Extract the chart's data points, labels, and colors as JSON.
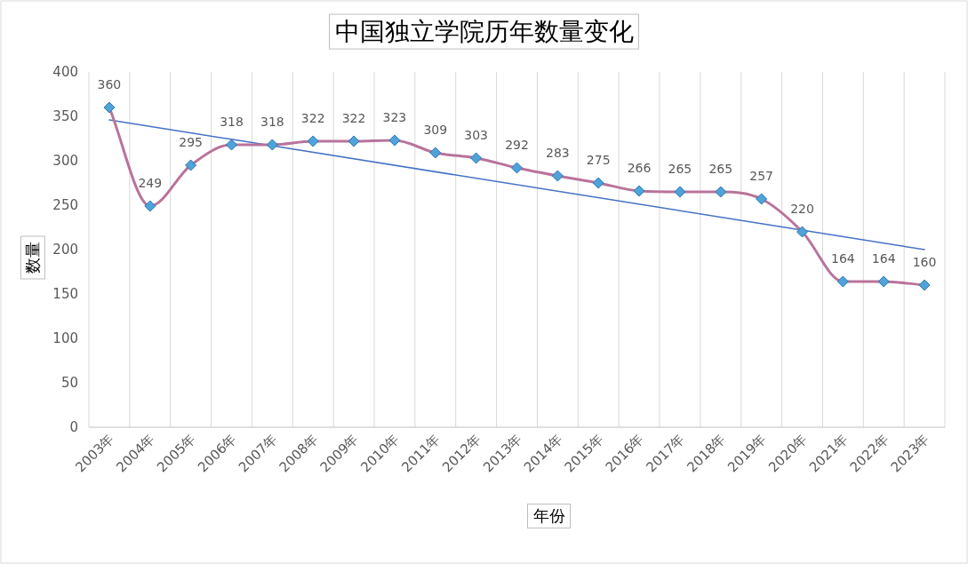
{
  "chart_data": {
    "type": "line",
    "title": "中国独立学院历年数量变化",
    "xlabel": "年份",
    "ylabel": "数量",
    "categories": [
      "2003年",
      "2004年",
      "2005年",
      "2006年",
      "2007年",
      "2008年",
      "2009年",
      "2010年",
      "2011年",
      "2012年",
      "2013年",
      "2014年",
      "2015年",
      "2016年",
      "2017年",
      "2018年",
      "2019年",
      "2020年",
      "2021年",
      "2022年",
      "2023年"
    ],
    "series": [
      {
        "color": "#b9739a",
        "values": [
          360,
          249,
          295,
          318,
          318,
          322,
          322,
          323,
          309,
          303,
          292,
          283,
          275,
          266,
          265,
          265,
          257,
          220,
          164,
          164,
          160
        ],
        "marker": "diamond",
        "data_labels": true
      },
      {
        "type": "line",
        "color": "#4472c4",
        "x": [
          "2003年",
          "2023年"
        ],
        "values": [
          346,
          200
        ],
        "marker": "none"
      }
    ],
    "ylim": [
      0,
      400
    ],
    "yticks": [
      0,
      50,
      100,
      150,
      200,
      250,
      300,
      350,
      400
    ],
    "grid": "x"
  }
}
